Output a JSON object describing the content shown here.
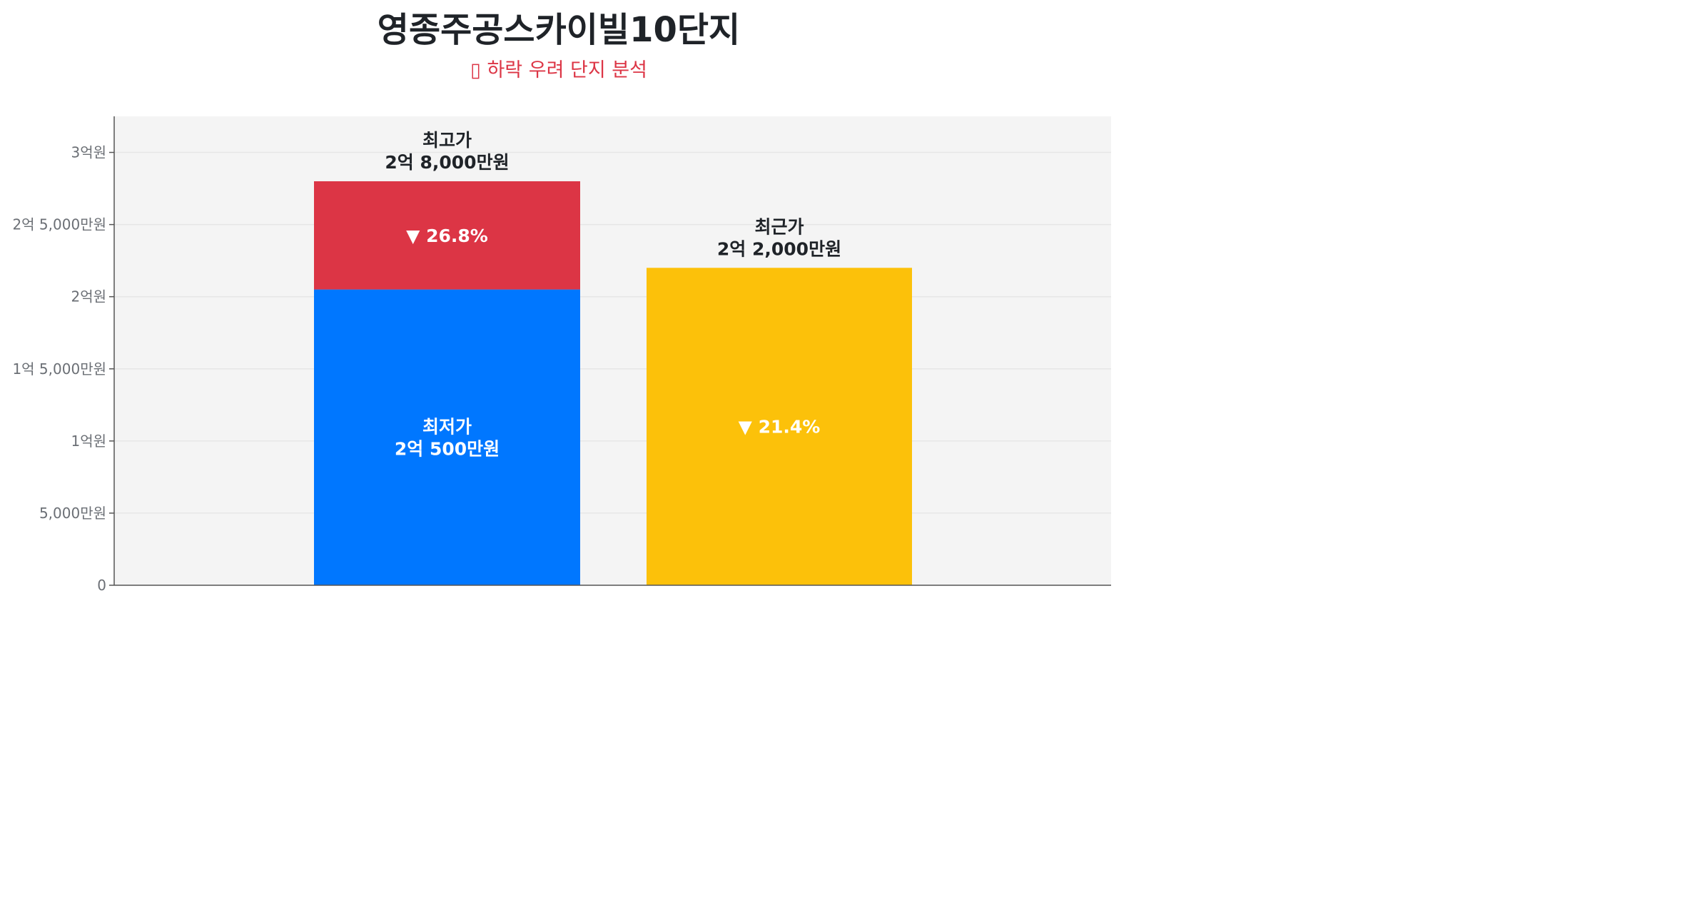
{
  "title": "영종주공스카이빌10단지",
  "subtitle": "▯ 하락 우려 단지 분석",
  "colors": {
    "plot_bg": "#f4f4f4",
    "grid": "#e6e6e6",
    "axis": "#555555",
    "lowest": "#0077ff",
    "drop_from_peak": "#dc3545",
    "recent": "#fcc10a",
    "tick_text": "#6b6f75",
    "label_text": "#1f2328"
  },
  "chart_data": {
    "type": "bar",
    "title": "영종주공스카이빌10단지",
    "subtitle": "▯ 하락 우려 단지 분석",
    "unit": "만원",
    "ylim": [
      0,
      32500
    ],
    "grid": true,
    "yticks": [
      {
        "value": 0,
        "label": "0"
      },
      {
        "value": 5000,
        "label": "5,000만원"
      },
      {
        "value": 10000,
        "label": "1억원"
      },
      {
        "value": 15000,
        "label": "1억 5,000만원"
      },
      {
        "value": 20000,
        "label": "2억원"
      },
      {
        "value": 25000,
        "label": "2억 5,000만원"
      },
      {
        "value": 30000,
        "label": "3억원"
      }
    ],
    "bars": [
      {
        "key": "peak",
        "segments": [
          {
            "key": "lowest",
            "from": 0,
            "to": 20500,
            "color_key": "lowest",
            "label_lines": [
              "최저가",
              "2억 500만원"
            ]
          },
          {
            "key": "drop",
            "from": 20500,
            "to": 28000,
            "color_key": "drop_from_peak",
            "label_lines": [
              "▼ 26.8%"
            ]
          }
        ],
        "top_label_lines": [
          "최고가",
          "2억 8,000만원"
        ]
      },
      {
        "key": "recent",
        "segments": [
          {
            "key": "recent",
            "from": 0,
            "to": 22000,
            "color_key": "recent",
            "label_lines": [
              "▼ 21.4%"
            ]
          }
        ],
        "top_label_lines": [
          "최근가",
          "2억 2,000만원"
        ]
      }
    ],
    "values": {
      "highest": 28000,
      "lowest": 20500,
      "recent": 22000,
      "drop_lowest_pct": 26.8,
      "drop_recent_pct": 21.4
    }
  }
}
